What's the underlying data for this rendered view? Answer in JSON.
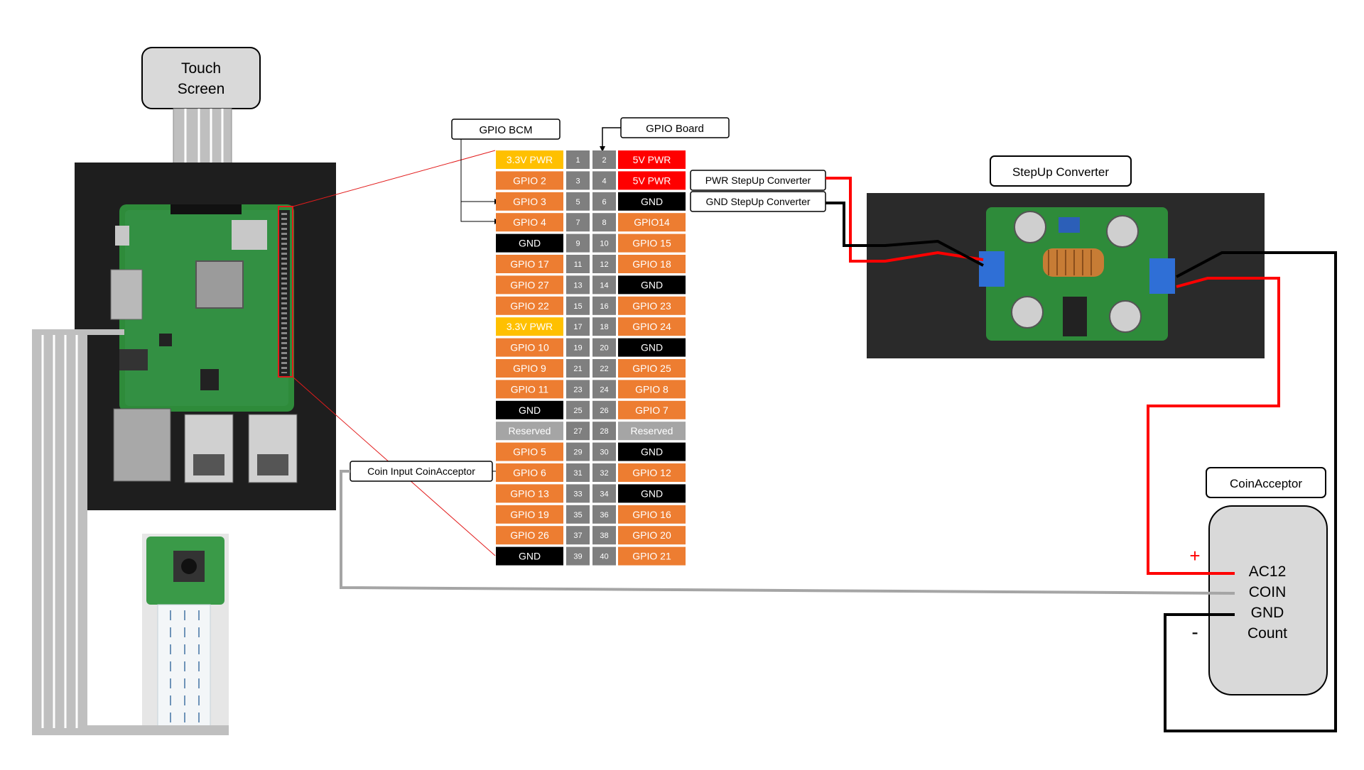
{
  "labels": {
    "touch_screen": [
      "Touch",
      "Screen"
    ],
    "gpio_bcm": "GPIO BCM",
    "gpio_board": "GPIO Board",
    "pwr_stepup": "PWR StepUp Converter",
    "gnd_stepup": "GND StepUp Converter",
    "stepup_title": "StepUp Converter",
    "coin_input": "Coin Input CoinAcceptor",
    "coinacceptor_title": "CoinAcceptor",
    "plus": "+",
    "minus": "-"
  },
  "coin_acceptor": {
    "pins": [
      "AC12",
      "COIN",
      "GND",
      "Count"
    ]
  },
  "gpio_header": {
    "left": [
      "3.3V PWR",
      "GPIO 2",
      "GPIO 3",
      "GPIO 4",
      "GND",
      "GPIO 17",
      "GPIO 27",
      "GPIO 22",
      "3.3V PWR",
      "GPIO 10",
      "GPIO 9",
      "GPIO 11",
      "GND",
      "Reserved",
      "GPIO 5",
      "GPIO 6",
      "GPIO 13",
      "GPIO 19",
      "GPIO 26",
      "GND"
    ],
    "left_type": [
      "pwr33",
      "gpio",
      "gpio",
      "gpio",
      "gnd",
      "gpio",
      "gpio",
      "gpio",
      "pwr33",
      "gpio",
      "gpio",
      "gpio",
      "gnd",
      "res",
      "gpio",
      "gpio",
      "gpio",
      "gpio",
      "gpio",
      "gnd"
    ],
    "right": [
      "5V PWR",
      "5V PWR",
      "GND",
      "GPIO14",
      "GPIO 15",
      "GPIO 18",
      "GND",
      "GPIO 23",
      "GPIO 24",
      "GND",
      "GPIO 25",
      "GPIO 8",
      "GPIO 7",
      "Reserved",
      "GND",
      "GPIO 12",
      "GND",
      "GPIO 16",
      "GPIO 20",
      "GPIO 21"
    ],
    "right_type": [
      "pwr5",
      "pwr5",
      "gnd",
      "gpio",
      "gpio",
      "gpio",
      "gnd",
      "gpio",
      "gpio",
      "gnd",
      "gpio",
      "gpio",
      "gpio",
      "res",
      "gnd",
      "gpio",
      "gnd",
      "gpio",
      "gpio",
      "gpio"
    ],
    "odd_pins": [
      "1",
      "3",
      "5",
      "7",
      "9",
      "11",
      "13",
      "15",
      "17",
      "19",
      "21",
      "23",
      "25",
      "27",
      "29",
      "31",
      "33",
      "35",
      "37",
      "39"
    ],
    "even_pins": [
      "2",
      "4",
      "6",
      "8",
      "10",
      "12",
      "14",
      "16",
      "18",
      "20",
      "22",
      "24",
      "26",
      "28",
      "30",
      "32",
      "34",
      "36",
      "38",
      "40"
    ]
  },
  "colors": {
    "gpio": "#ED7D31",
    "gnd": "#000000",
    "pwr33": "#FFC000",
    "pwr5": "#FF0000",
    "reserved": "#A5A5A5",
    "pin_number": "#7F7F7F",
    "wire_red": "#FF0000",
    "wire_black": "#000000",
    "wire_gray": "#A5A5A5",
    "board_green": "#2E8B3A"
  },
  "icons": [
    "raspberry-pi-board",
    "camera-module",
    "stepup-converter-board"
  ]
}
